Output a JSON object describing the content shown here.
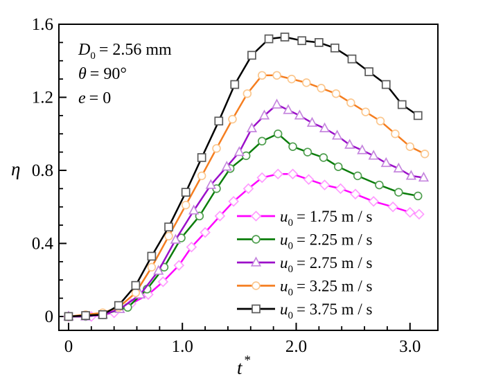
{
  "figure": {
    "background": "#ffffff",
    "frame_color": "#000000",
    "annotation_lines": [
      {
        "var": "D",
        "sub": "0",
        "rest": "= 2.56 mm",
        "text": "D0 = 2.56 mm"
      },
      {
        "var": "θ",
        "sub": "",
        "rest": "= 90°",
        "text": "θ = 90°"
      },
      {
        "var": "e",
        "sub": "",
        "rest": "= 0",
        "text": "e = 0"
      }
    ]
  },
  "axes": {
    "x": {
      "label_base": "t",
      "label_sup": "*",
      "min": -0.085,
      "max": 3.245,
      "major_ticks": [
        0,
        1.0,
        2.0,
        3.0
      ],
      "tick_labels": [
        "0",
        "1.0",
        "2.0",
        "3.0"
      ],
      "minor_step": 0.2
    },
    "y": {
      "label": "η",
      "min": -0.076,
      "max": 1.6,
      "major_ticks": [
        0,
        0.4,
        0.8,
        1.2,
        1.6
      ],
      "tick_labels": [
        "0",
        "0.4",
        "0.8",
        "1.2",
        "1.6"
      ],
      "minor_step": 0.1
    }
  },
  "legend": {
    "position": "lower-right-inside",
    "rows": [
      {
        "series": 0,
        "var": "u",
        "sub": "0",
        "rest": "= 1.75 m / s",
        "text": "u0 = 1.75 m / s"
      },
      {
        "series": 1,
        "var": "u",
        "sub": "0",
        "rest": "= 2.25 m / s",
        "text": "u0 = 2.25 m / s"
      },
      {
        "series": 2,
        "var": "u",
        "sub": "0",
        "rest": "= 2.75 m / s",
        "text": "u0 = 2.75 m / s"
      },
      {
        "series": 3,
        "var": "u",
        "sub": "0",
        "rest": "= 3.25 m / s",
        "text": "u0 = 3.25 m / s"
      },
      {
        "series": 4,
        "var": "u",
        "sub": "0",
        "rest": "= 3.75 m / s",
        "text": "u0 = 3.75 m / s"
      }
    ]
  },
  "chart_data": {
    "type": "line",
    "title": "",
    "xlabel": "t*",
    "ylabel": "η",
    "xlim": [
      -0.085,
      3.245
    ],
    "ylim": [
      -0.076,
      1.6
    ],
    "grid": false,
    "legend_position": "lower right inside",
    "series": [
      {
        "name": "u0 = 1.75 m/s",
        "color": "#FF00FF",
        "marker": "diamond",
        "marker_edge": "#FF9BFF",
        "points": [
          [
            0,
            0
          ],
          [
            0.2,
            0
          ],
          [
            0.4,
            0.02
          ],
          [
            0.55,
            0.07
          ],
          [
            0.7,
            0.12
          ],
          [
            0.83,
            0.19
          ],
          [
            0.97,
            0.28
          ],
          [
            1.08,
            0.38
          ],
          [
            1.2,
            0.46
          ],
          [
            1.33,
            0.55
          ],
          [
            1.45,
            0.63
          ],
          [
            1.58,
            0.7
          ],
          [
            1.7,
            0.76
          ],
          [
            1.84,
            0.78
          ],
          [
            1.97,
            0.78
          ],
          [
            2.11,
            0.75
          ],
          [
            2.25,
            0.72
          ],
          [
            2.39,
            0.7
          ],
          [
            2.52,
            0.67
          ],
          [
            2.68,
            0.63
          ],
          [
            2.85,
            0.6
          ],
          [
            3.0,
            0.57
          ],
          [
            3.08,
            0.56
          ]
        ]
      },
      {
        "name": "u0 = 2.25 m/s",
        "color": "#0B7D0B",
        "marker": "circle",
        "marker_edge": "#4E9E4E",
        "points": [
          [
            0,
            0
          ],
          [
            0.15,
            0
          ],
          [
            0.3,
            0.01
          ],
          [
            0.52,
            0.05
          ],
          [
            0.69,
            0.15
          ],
          [
            0.84,
            0.27
          ],
          [
            0.99,
            0.43
          ],
          [
            1.15,
            0.55
          ],
          [
            1.3,
            0.7
          ],
          [
            1.42,
            0.81
          ],
          [
            1.56,
            0.88
          ],
          [
            1.7,
            0.96
          ],
          [
            1.84,
            1.0
          ],
          [
            1.97,
            0.93
          ],
          [
            2.1,
            0.9
          ],
          [
            2.24,
            0.87
          ],
          [
            2.37,
            0.82
          ],
          [
            2.54,
            0.77
          ],
          [
            2.73,
            0.72
          ],
          [
            2.9,
            0.68
          ],
          [
            3.07,
            0.66
          ]
        ]
      },
      {
        "name": "u0 = 2.75 m/s",
        "color": "#9B0FC9",
        "marker": "triangle",
        "marker_edge": "#C585DE",
        "points": [
          [
            0,
            0
          ],
          [
            0.15,
            0
          ],
          [
            0.3,
            0.01
          ],
          [
            0.45,
            0.04
          ],
          [
            0.63,
            0.12
          ],
          [
            0.79,
            0.25
          ],
          [
            0.94,
            0.42
          ],
          [
            1.1,
            0.58
          ],
          [
            1.25,
            0.72
          ],
          [
            1.39,
            0.82
          ],
          [
            1.5,
            0.9
          ],
          [
            1.61,
            1.03
          ],
          [
            1.72,
            1.1
          ],
          [
            1.83,
            1.16
          ],
          [
            1.93,
            1.13
          ],
          [
            2.03,
            1.1
          ],
          [
            2.14,
            1.06
          ],
          [
            2.25,
            1.03
          ],
          [
            2.36,
            0.99
          ],
          [
            2.47,
            0.94
          ],
          [
            2.58,
            0.91
          ],
          [
            2.68,
            0.88
          ],
          [
            2.79,
            0.84
          ],
          [
            2.9,
            0.81
          ],
          [
            3.01,
            0.77
          ],
          [
            3.12,
            0.76
          ]
        ]
      },
      {
        "name": "u0 = 3.25 m/s",
        "color": "#F57E20",
        "marker": "circle",
        "marker_edge": "#FBC78E",
        "points": [
          [
            0,
            0
          ],
          [
            0.15,
            0.01
          ],
          [
            0.3,
            0.02
          ],
          [
            0.44,
            0.05
          ],
          [
            0.59,
            0.13
          ],
          [
            0.73,
            0.27
          ],
          [
            0.88,
            0.44
          ],
          [
            1.03,
            0.61
          ],
          [
            1.17,
            0.77
          ],
          [
            1.3,
            0.92
          ],
          [
            1.44,
            1.08
          ],
          [
            1.57,
            1.22
          ],
          [
            1.7,
            1.32
          ],
          [
            1.83,
            1.32
          ],
          [
            1.96,
            1.3
          ],
          [
            2.09,
            1.28
          ],
          [
            2.22,
            1.25
          ],
          [
            2.35,
            1.22
          ],
          [
            2.48,
            1.17
          ],
          [
            2.61,
            1.12
          ],
          [
            2.74,
            1.07
          ],
          [
            2.87,
            1.0
          ],
          [
            3.0,
            0.93
          ],
          [
            3.13,
            0.89
          ]
        ]
      },
      {
        "name": "u0 = 3.75 m/s",
        "color": "#000000",
        "marker": "square",
        "marker_edge": "#595959",
        "points": [
          [
            0,
            0
          ],
          [
            0.15,
            0.005
          ],
          [
            0.3,
            0.01
          ],
          [
            0.44,
            0.06
          ],
          [
            0.59,
            0.17
          ],
          [
            0.73,
            0.33
          ],
          [
            0.88,
            0.49
          ],
          [
            1.03,
            0.68
          ],
          [
            1.17,
            0.87
          ],
          [
            1.32,
            1.07
          ],
          [
            1.46,
            1.27
          ],
          [
            1.61,
            1.43
          ],
          [
            1.76,
            1.52
          ],
          [
            1.9,
            1.53
          ],
          [
            2.05,
            1.51
          ],
          [
            2.2,
            1.5
          ],
          [
            2.34,
            1.47
          ],
          [
            2.49,
            1.41
          ],
          [
            2.64,
            1.34
          ],
          [
            2.79,
            1.27
          ],
          [
            2.93,
            1.16
          ],
          [
            3.07,
            1.1
          ]
        ]
      }
    ]
  }
}
